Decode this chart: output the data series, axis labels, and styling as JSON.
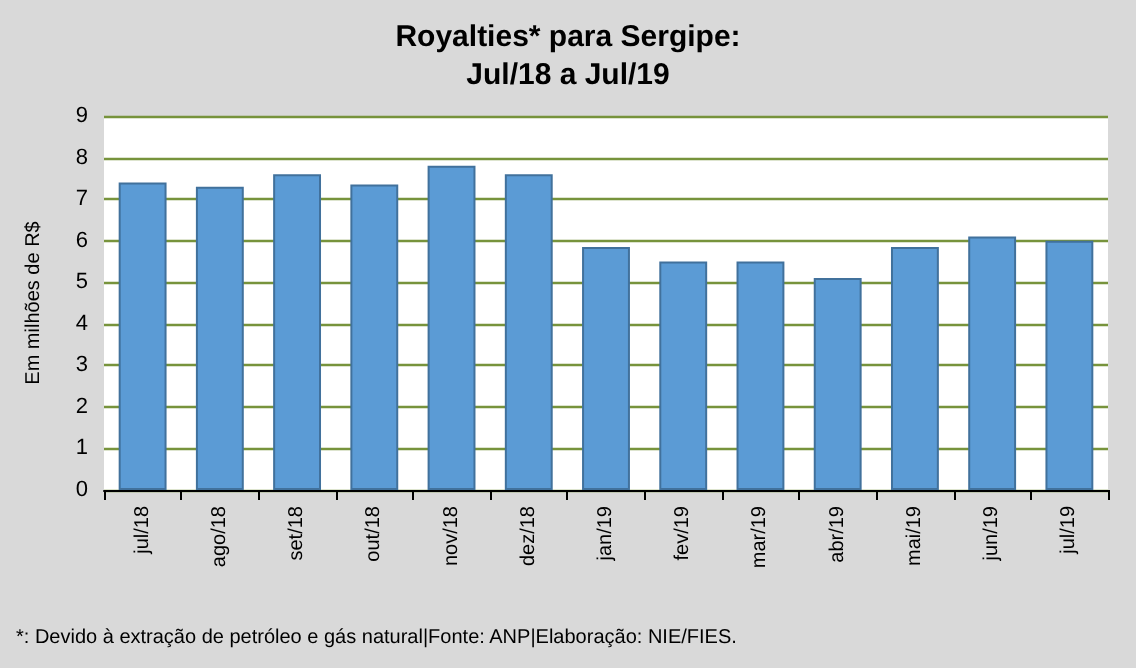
{
  "chart_data": {
    "type": "bar",
    "title": "Royalties* para Sergipe:\nJul/18 a Jul/19",
    "ylabel": "Em milhões de R$",
    "categories": [
      "jul/18",
      "ago/18",
      "set/18",
      "out/18",
      "nov/18",
      "dez/18",
      "jan/19",
      "fev/19",
      "mar/19",
      "abr/19",
      "mai/19",
      "jun/19",
      "jul/19"
    ],
    "values": [
      7.4,
      7.3,
      7.6,
      7.35,
      7.8,
      7.6,
      5.85,
      5.5,
      5.5,
      5.1,
      5.85,
      6.1,
      6.0
    ],
    "color": "#5b9bd5",
    "ylim": [
      0,
      9
    ],
    "yticks": [
      0,
      1,
      2,
      3,
      4,
      5,
      6,
      7,
      8,
      9
    ],
    "grid": "y",
    "annotations": [
      "*: Devido à extração de petróleo e gás natural|Fonte: ANP|Elaboração: NIE/FIES."
    ]
  }
}
